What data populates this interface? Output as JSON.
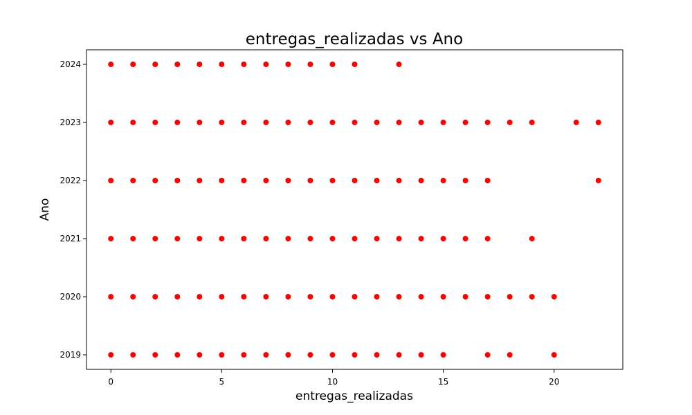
{
  "chart_data": {
    "type": "scatter",
    "title": "entregas_realizadas vs Ano",
    "xlabel": "entregas_realizadas",
    "ylabel": "Ano",
    "xlim": [
      -1.1,
      23.1
    ],
    "ylim": [
      2018.75,
      2024.25
    ],
    "xticks": [
      0,
      5,
      10,
      15,
      20
    ],
    "yticks": [
      2019,
      2020,
      2021,
      2022,
      2023,
      2024
    ],
    "grid": false,
    "marker_color": "#ff0000",
    "series": [
      {
        "points": [
          [
            0,
            2024
          ],
          [
            1,
            2024
          ],
          [
            2,
            2024
          ],
          [
            3,
            2024
          ],
          [
            4,
            2024
          ],
          [
            5,
            2024
          ],
          [
            6,
            2024
          ],
          [
            7,
            2024
          ],
          [
            8,
            2024
          ],
          [
            9,
            2024
          ],
          [
            10,
            2024
          ],
          [
            11,
            2024
          ],
          [
            13,
            2024
          ],
          [
            0,
            2023
          ],
          [
            1,
            2023
          ],
          [
            2,
            2023
          ],
          [
            3,
            2023
          ],
          [
            4,
            2023
          ],
          [
            5,
            2023
          ],
          [
            6,
            2023
          ],
          [
            7,
            2023
          ],
          [
            8,
            2023
          ],
          [
            9,
            2023
          ],
          [
            10,
            2023
          ],
          [
            11,
            2023
          ],
          [
            12,
            2023
          ],
          [
            13,
            2023
          ],
          [
            14,
            2023
          ],
          [
            15,
            2023
          ],
          [
            16,
            2023
          ],
          [
            17,
            2023
          ],
          [
            18,
            2023
          ],
          [
            19,
            2023
          ],
          [
            21,
            2023
          ],
          [
            22,
            2023
          ],
          [
            0,
            2022
          ],
          [
            1,
            2022
          ],
          [
            2,
            2022
          ],
          [
            3,
            2022
          ],
          [
            4,
            2022
          ],
          [
            5,
            2022
          ],
          [
            6,
            2022
          ],
          [
            7,
            2022
          ],
          [
            8,
            2022
          ],
          [
            9,
            2022
          ],
          [
            10,
            2022
          ],
          [
            11,
            2022
          ],
          [
            12,
            2022
          ],
          [
            13,
            2022
          ],
          [
            14,
            2022
          ],
          [
            15,
            2022
          ],
          [
            16,
            2022
          ],
          [
            17,
            2022
          ],
          [
            22,
            2022
          ],
          [
            0,
            2021
          ],
          [
            1,
            2021
          ],
          [
            2,
            2021
          ],
          [
            3,
            2021
          ],
          [
            4,
            2021
          ],
          [
            5,
            2021
          ],
          [
            6,
            2021
          ],
          [
            7,
            2021
          ],
          [
            8,
            2021
          ],
          [
            9,
            2021
          ],
          [
            10,
            2021
          ],
          [
            11,
            2021
          ],
          [
            12,
            2021
          ],
          [
            13,
            2021
          ],
          [
            14,
            2021
          ],
          [
            15,
            2021
          ],
          [
            16,
            2021
          ],
          [
            17,
            2021
          ],
          [
            19,
            2021
          ],
          [
            0,
            2020
          ],
          [
            1,
            2020
          ],
          [
            2,
            2020
          ],
          [
            3,
            2020
          ],
          [
            4,
            2020
          ],
          [
            5,
            2020
          ],
          [
            6,
            2020
          ],
          [
            7,
            2020
          ],
          [
            8,
            2020
          ],
          [
            9,
            2020
          ],
          [
            10,
            2020
          ],
          [
            11,
            2020
          ],
          [
            12,
            2020
          ],
          [
            13,
            2020
          ],
          [
            14,
            2020
          ],
          [
            15,
            2020
          ],
          [
            16,
            2020
          ],
          [
            17,
            2020
          ],
          [
            18,
            2020
          ],
          [
            19,
            2020
          ],
          [
            20,
            2020
          ],
          [
            0,
            2019
          ],
          [
            1,
            2019
          ],
          [
            2,
            2019
          ],
          [
            3,
            2019
          ],
          [
            4,
            2019
          ],
          [
            5,
            2019
          ],
          [
            6,
            2019
          ],
          [
            7,
            2019
          ],
          [
            8,
            2019
          ],
          [
            9,
            2019
          ],
          [
            10,
            2019
          ],
          [
            11,
            2019
          ],
          [
            12,
            2019
          ],
          [
            13,
            2019
          ],
          [
            14,
            2019
          ],
          [
            15,
            2019
          ],
          [
            17,
            2019
          ],
          [
            18,
            2019
          ],
          [
            20,
            2019
          ]
        ]
      }
    ]
  }
}
